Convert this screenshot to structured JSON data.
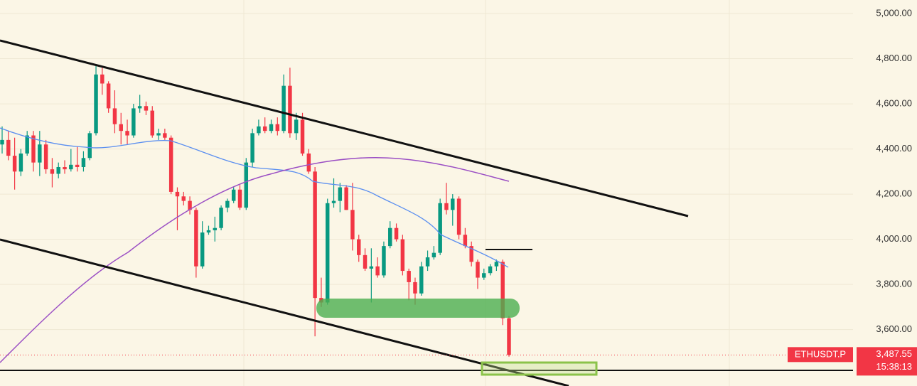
{
  "chart_data": {
    "type": "candlestick",
    "symbol": "ETHUSDT.P",
    "last_price": {
      "value": 3487.55,
      "label": "3,487.55"
    },
    "countdown": "15:38:13",
    "up_color": "#089981",
    "down_color": "#f23645",
    "grid": true,
    "ylim": [
      3350,
      5060
    ],
    "yticks": [
      {
        "value": 3600,
        "label": "3,600.00"
      },
      {
        "value": 3800,
        "label": "3,800.00"
      },
      {
        "value": 4000,
        "label": "4,000.00"
      },
      {
        "value": 4200,
        "label": "4,200.00"
      },
      {
        "value": 4400,
        "label": "4,400.00"
      },
      {
        "value": 4600,
        "label": "4,600.00"
      },
      {
        "value": 4800,
        "label": "4,800.00"
      },
      {
        "value": 5000,
        "label": "5,000.00"
      }
    ],
    "ohlc": [
      [
        4420,
        4500,
        4380,
        4440
      ],
      [
        4440,
        4480,
        4350,
        4370
      ],
      [
        4370,
        4450,
        4220,
        4300
      ],
      [
        4300,
        4400,
        4280,
        4380
      ],
      [
        4380,
        4480,
        4370,
        4460
      ],
      [
        4460,
        4480,
        4300,
        4340
      ],
      [
        4340,
        4480,
        4280,
        4420
      ],
      [
        4420,
        4440,
        4290,
        4310
      ],
      [
        4310,
        4360,
        4230,
        4290
      ],
      [
        4290,
        4340,
        4270,
        4320
      ],
      [
        4320,
        4350,
        4290,
        4310
      ],
      [
        4310,
        4400,
        4300,
        4330
      ],
      [
        4330,
        4410,
        4300,
        4320
      ],
      [
        4320,
        4390,
        4300,
        4360
      ],
      [
        4360,
        4480,
        4350,
        4470
      ],
      [
        4470,
        4770,
        4460,
        4730
      ],
      [
        4730,
        4760,
        4640,
        4690
      ],
      [
        4690,
        4700,
        4560,
        4580
      ],
      [
        4580,
        4660,
        4470,
        4510
      ],
      [
        4510,
        4560,
        4420,
        4480
      ],
      [
        4480,
        4530,
        4420,
        4460
      ],
      [
        4460,
        4600,
        4450,
        4580
      ],
      [
        4580,
        4640,
        4560,
        4590
      ],
      [
        4590,
        4610,
        4550,
        4570
      ],
      [
        4570,
        4590,
        4450,
        4460
      ],
      [
        4460,
        4490,
        4440,
        4470
      ],
      [
        4470,
        4490,
        4440,
        4450
      ],
      [
        4450,
        4460,
        4200,
        4210
      ],
      [
        4210,
        4230,
        4040,
        4190
      ],
      [
        4190,
        4210,
        4150,
        4170
      ],
      [
        4170,
        4190,
        4110,
        4130
      ],
      [
        4130,
        4140,
        3830,
        3880
      ],
      [
        3880,
        4080,
        3870,
        4030
      ],
      [
        4030,
        4060,
        4020,
        4040
      ],
      [
        4040,
        4100,
        3990,
        4050
      ],
      [
        4050,
        4150,
        4040,
        4140
      ],
      [
        4140,
        4180,
        4120,
        4170
      ],
      [
        4170,
        4230,
        4160,
        4220
      ],
      [
        4220,
        4240,
        4130,
        4140
      ],
      [
        4140,
        4360,
        4130,
        4340
      ],
      [
        4340,
        4490,
        4320,
        4470
      ],
      [
        4470,
        4530,
        4460,
        4500
      ],
      [
        4500,
        4540,
        4470,
        4480
      ],
      [
        4480,
        4530,
        4470,
        4510
      ],
      [
        4510,
        4540,
        4460,
        4480
      ],
      [
        4480,
        4730,
        4470,
        4680
      ],
      [
        4680,
        4760,
        4450,
        4470
      ],
      [
        4470,
        4560,
        4440,
        4530
      ],
      [
        4530,
        4560,
        4370,
        4380
      ],
      [
        4380,
        4400,
        4290,
        4300
      ],
      [
        4300,
        4320,
        3570,
        3740
      ],
      [
        3740,
        3830,
        3700,
        3720
      ],
      [
        3720,
        4180,
        3710,
        4160
      ],
      [
        4160,
        4270,
        4140,
        4170
      ],
      [
        4170,
        4250,
        4120,
        4230
      ],
      [
        4230,
        4240,
        4130,
        4130
      ],
      [
        4130,
        4250,
        3950,
        4000
      ],
      [
        4000,
        4020,
        3900,
        3930
      ],
      [
        3930,
        3960,
        3860,
        3870
      ],
      [
        3870,
        3960,
        3720,
        3880
      ],
      [
        3880,
        3920,
        3830,
        3840
      ],
      [
        3840,
        3990,
        3830,
        3970
      ],
      [
        3970,
        4080,
        3960,
        4050
      ],
      [
        4050,
        4070,
        3990,
        4000
      ],
      [
        4000,
        4020,
        3840,
        3860
      ],
      [
        3860,
        3870,
        3730,
        3810
      ],
      [
        3810,
        3830,
        3710,
        3760
      ],
      [
        3760,
        3900,
        3750,
        3880
      ],
      [
        3880,
        3950,
        3860,
        3920
      ],
      [
        3920,
        3970,
        3910,
        3940
      ],
      [
        3940,
        4180,
        3930,
        4160
      ],
      [
        4160,
        4250,
        4110,
        4130
      ],
      [
        4130,
        4200,
        4060,
        4180
      ],
      [
        4180,
        4190,
        4000,
        4020
      ],
      [
        4020,
        4050,
        3960,
        3970
      ],
      [
        3970,
        3990,
        3880,
        3900
      ],
      [
        3900,
        3910,
        3780,
        3830
      ],
      [
        3830,
        3870,
        3820,
        3850
      ],
      [
        3850,
        3890,
        3840,
        3880
      ],
      [
        3880,
        3910,
        3860,
        3900
      ],
      [
        3900,
        3910,
        3620,
        3650
      ],
      [
        3650,
        3660,
        3480,
        3487.55
      ]
    ]
  }
}
